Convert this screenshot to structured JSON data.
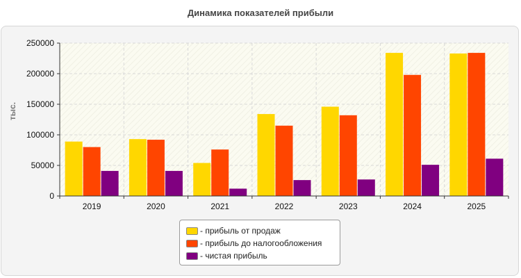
{
  "chart_data": {
    "type": "bar",
    "title": "Динамика показателей прибыли",
    "ylabel": "тыс.",
    "xlabel": "",
    "categories": [
      "2019",
      "2020",
      "2021",
      "2022",
      "2023",
      "2024",
      "2025"
    ],
    "ylim": [
      0,
      250000
    ],
    "yticks": [
      0,
      50000,
      100000,
      150000,
      200000,
      250000
    ],
    "grid": true,
    "legend_position": "bottom",
    "series": [
      {
        "name": "- прибыль от продаж",
        "color": "#ffd700",
        "values": [
          89000,
          93000,
          54000,
          134000,
          146000,
          234000,
          233000
        ]
      },
      {
        "name": "- прибыль до налогообложения",
        "color": "#ff4500",
        "values": [
          80000,
          92000,
          76000,
          115000,
          132000,
          198000,
          234000
        ]
      },
      {
        "name": "- чистая прибыль",
        "color": "#800080",
        "values": [
          41000,
          41000,
          12000,
          26000,
          27000,
          51000,
          61000
        ]
      }
    ]
  }
}
